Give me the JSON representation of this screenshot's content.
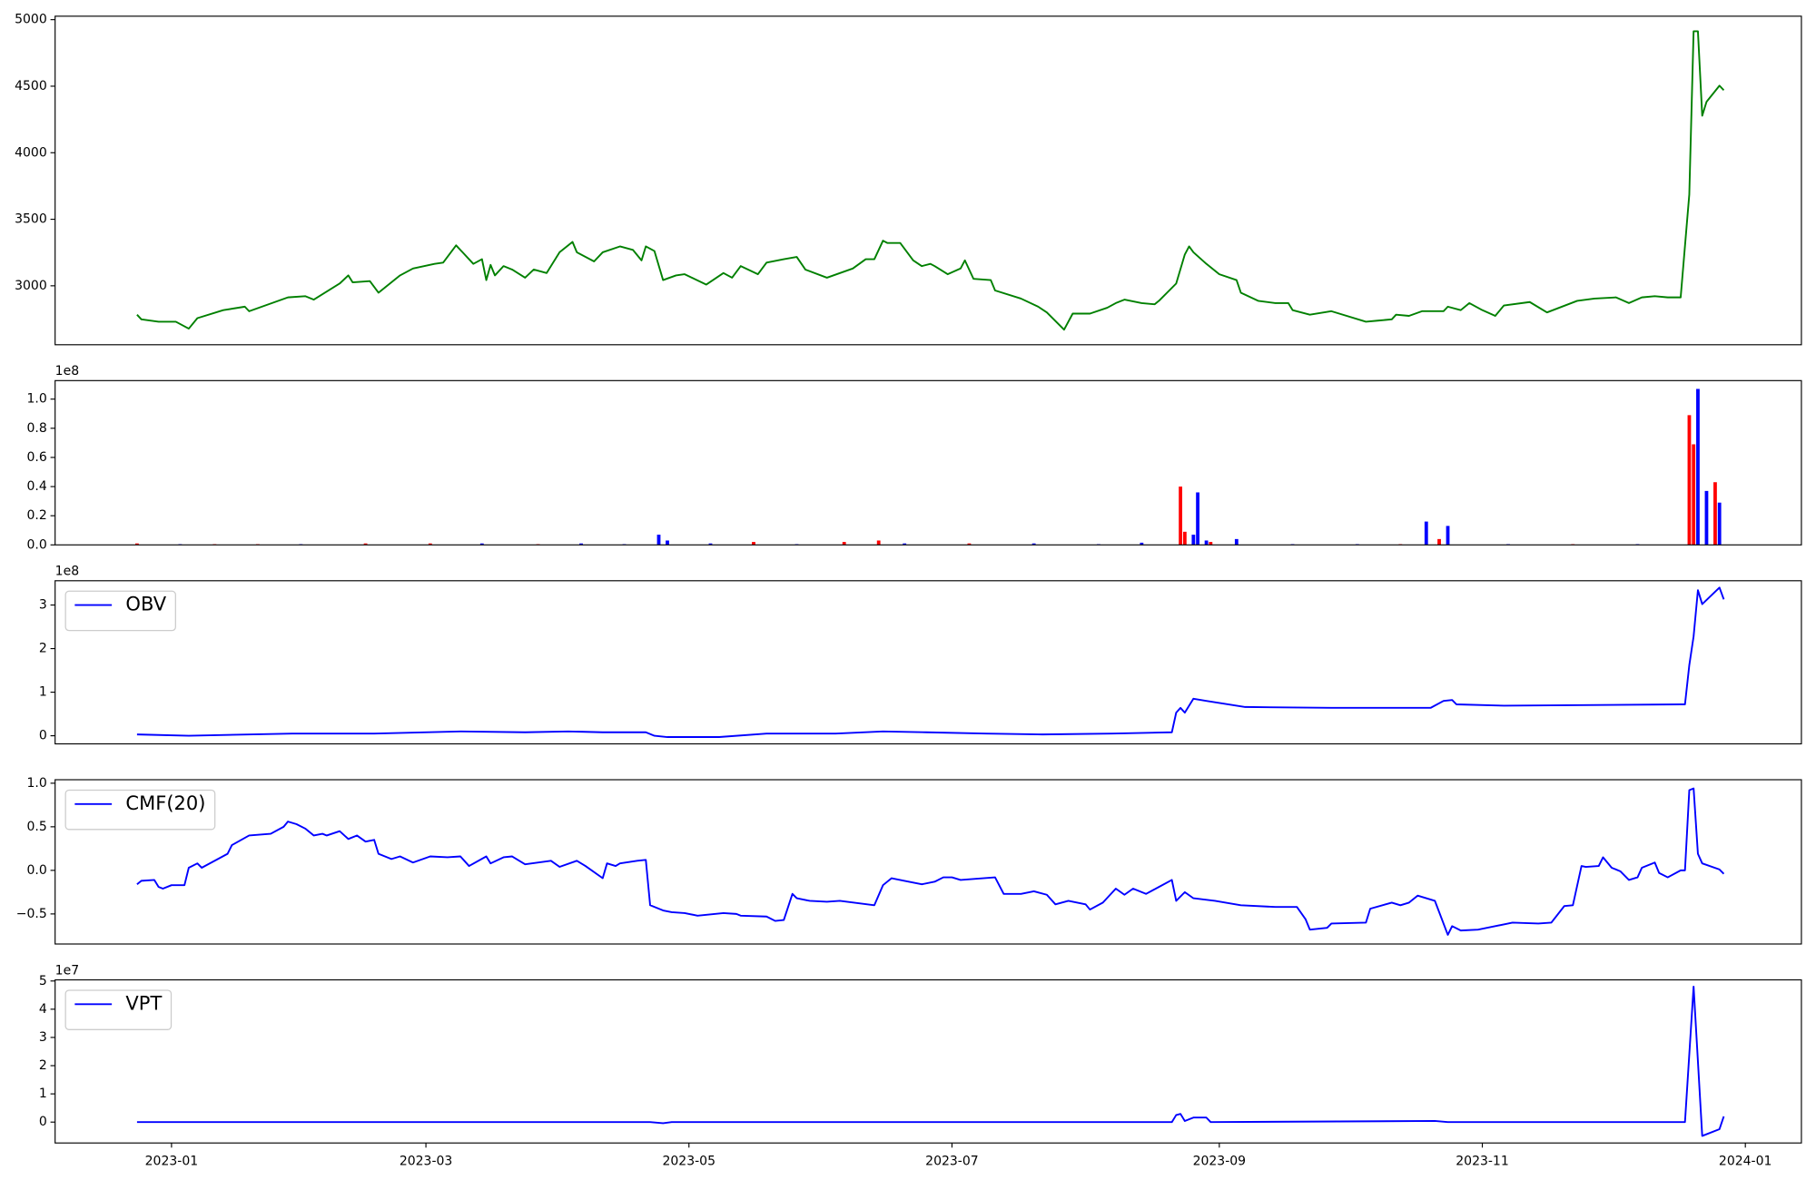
{
  "chart_data": [
    {
      "type": "line",
      "color": "#008000",
      "xlim": [
        -27,
        378
      ],
      "ylim": [
        2557,
        5026
      ],
      "yticks": [
        3000,
        3500,
        4000,
        4500,
        5000
      ],
      "x": [
        -8,
        -7,
        -3,
        1,
        4,
        6,
        12,
        17,
        18,
        27,
        31,
        33,
        39,
        41,
        42,
        46,
        48,
        53,
        56,
        61,
        63,
        66,
        70,
        72,
        73,
        74,
        75,
        77,
        79,
        82,
        84,
        87,
        90,
        93,
        94,
        98,
        100,
        104,
        107,
        109,
        110,
        112,
        114,
        117,
        119,
        124,
        128,
        130,
        132,
        136,
        138,
        142,
        145,
        147,
        152,
        158,
        161,
        163,
        165,
        166,
        169,
        172,
        174,
        176,
        177,
        180,
        183,
        184,
        186,
        190,
        191,
        197,
        201,
        203,
        207,
        209,
        213,
        217,
        219,
        221,
        225,
        228,
        229,
        233,
        235,
        236,
        237,
        240,
        243,
        247,
        248,
        252,
        256,
        259,
        260,
        264,
        269,
        277,
        280,
        283,
        284,
        287,
        290,
        295,
        296,
        299,
        301,
        304,
        307,
        309,
        315,
        319,
        326,
        330,
        335,
        338,
        341,
        344,
        347,
        350,
        352,
        353,
        354,
        355,
        356,
        359,
        360
      ],
      "values": [
        2783,
        2748,
        2730,
        2730,
        2678,
        2757,
        2817,
        2843,
        2809,
        2913,
        2922,
        2896,
        3017,
        3078,
        3026,
        3035,
        2948,
        3078,
        3130,
        3165,
        3174,
        3304,
        3165,
        3200,
        3043,
        3157,
        3078,
        3148,
        3122,
        3061,
        3122,
        3096,
        3252,
        3330,
        3252,
        3183,
        3252,
        3296,
        3270,
        3191,
        3296,
        3261,
        3043,
        3078,
        3087,
        3009,
        3096,
        3061,
        3148,
        3087,
        3174,
        3200,
        3217,
        3122,
        3061,
        3130,
        3200,
        3200,
        3339,
        3322,
        3322,
        3191,
        3148,
        3165,
        3148,
        3087,
        3130,
        3191,
        3052,
        3043,
        2965,
        2904,
        2843,
        2800,
        2670,
        2791,
        2791,
        2835,
        2870,
        2896,
        2870,
        2861,
        2887,
        3017,
        3235,
        3296,
        3252,
        3165,
        3087,
        3043,
        2948,
        2887,
        2870,
        2870,
        2817,
        2783,
        2809,
        2730,
        2739,
        2748,
        2783,
        2774,
        2809,
        2809,
        2843,
        2817,
        2870,
        2817,
        2774,
        2852,
        2878,
        2800,
        2887,
        2904,
        2913,
        2870,
        2913,
        2922,
        2913,
        2913,
        3687,
        4913,
        4913,
        4278,
        4383,
        4504,
        4470
      ]
    },
    {
      "type": "bar",
      "offset_text": "1e8",
      "xlim": [
        -27,
        378
      ],
      "ylim": [
        0,
        1.127
      ],
      "yticks": [
        {
          "value": 0,
          "label": "0.0"
        },
        {
          "value": 0.2,
          "label": "0.2"
        },
        {
          "value": 0.4,
          "label": "0.4"
        },
        {
          "value": 0.6,
          "label": "0.6"
        },
        {
          "value": 0.8,
          "label": "0.8"
        },
        {
          "value": 1.0,
          "label": "1.0"
        }
      ],
      "x": [
        -8,
        2,
        10,
        20,
        30,
        45,
        60,
        72,
        85,
        95,
        105,
        113,
        115,
        125,
        135,
        145,
        156,
        164,
        170,
        185,
        200,
        215,
        225,
        234,
        235,
        237,
        238,
        240,
        241,
        247,
        260,
        275,
        285,
        291,
        294,
        296,
        310,
        325,
        340,
        352,
        353,
        354,
        356,
        358,
        359
      ],
      "values": [
        0.01,
        0.005,
        0.005,
        0.005,
        0.005,
        0.01,
        0.01,
        0.01,
        0.005,
        0.01,
        0.005,
        0.07,
        0.03,
        0.01,
        0.02,
        0.005,
        0.02,
        0.03,
        0.01,
        0.01,
        0.01,
        0.005,
        0.015,
        0.4,
        0.09,
        0.07,
        0.36,
        0.03,
        0.02,
        0.04,
        0.005,
        0.005,
        0.005,
        0.16,
        0.04,
        0.13,
        0.005,
        0.005,
        0.005,
        0.89,
        0.69,
        1.07,
        0.37,
        0.43,
        0.29
      ],
      "colors": [
        "#ff0000",
        "#0000ff",
        "#ff0000",
        "#ff0000",
        "#0000ff",
        "#ff0000",
        "#ff0000",
        "#0000ff",
        "#ff0000",
        "#0000ff",
        "#0000ff",
        "#0000ff",
        "#0000ff",
        "#0000ff",
        "#ff0000",
        "#0000ff",
        "#ff0000",
        "#ff0000",
        "#0000ff",
        "#ff0000",
        "#0000ff",
        "#0000ff",
        "#0000ff",
        "#ff0000",
        "#ff0000",
        "#0000ff",
        "#0000ff",
        "#0000ff",
        "#ff0000",
        "#0000ff",
        "#0000ff",
        "#0000ff",
        "#ff0000",
        "#0000ff",
        "#ff0000",
        "#0000ff",
        "#0000ff",
        "#ff0000",
        "#0000ff",
        "#ff0000",
        "#ff0000",
        "#0000ff",
        "#0000ff",
        "#ff0000",
        "#0000ff"
      ]
    },
    {
      "type": "line",
      "offset_text": "1e8",
      "legend": "upper left",
      "xlim": [
        -27,
        378
      ],
      "ylim": [
        -0.186,
        3.557
      ],
      "yticks": [
        0,
        1,
        2,
        3
      ],
      "x": [
        -8,
        4,
        28,
        47,
        67,
        82,
        92,
        100,
        110,
        112,
        115,
        127,
        138,
        154,
        165,
        175,
        189,
        202,
        218,
        232,
        233,
        234,
        235,
        237,
        240,
        249,
        269,
        292,
        295,
        297,
        298,
        309,
        350,
        351,
        352,
        353,
        354,
        355,
        359,
        360
      ],
      "series": [
        {
          "name": "OBV",
          "color": "#0000ff",
          "values": [
            0.03,
            0,
            0.05,
            0.05,
            0.1,
            0.08,
            0.1,
            0.08,
            0.08,
            0,
            -0.03,
            -0.03,
            0.05,
            0.05,
            0.1,
            0.08,
            0.05,
            0.03,
            0.05,
            0.08,
            0.53,
            0.64,
            0.53,
            0.85,
            0.8,
            0.66,
            0.64,
            0.64,
            0.8,
            0.82,
            0.72,
            0.69,
            0.72,
            0.72,
            1.62,
            2.28,
            3.34,
            3.02,
            3.4,
            3.13
          ]
        }
      ]
    },
    {
      "type": "line",
      "legend": "upper left",
      "xlim": [
        -27,
        378
      ],
      "ylim": [
        -0.845,
        1.04
      ],
      "yticks": [
        {
          "value": -0.5,
          "label": "−0.5"
        },
        {
          "value": 0,
          "label": "0.0"
        },
        {
          "value": 0.5,
          "label": "0.5"
        },
        {
          "value": 1.0,
          "label": "1.0"
        }
      ],
      "x": [
        -8,
        -7,
        -4,
        -3,
        -2,
        0,
        3,
        4,
        6,
        7,
        13,
        14,
        18,
        23,
        26,
        27,
        29,
        31,
        33,
        35,
        36,
        39,
        41,
        43,
        45,
        47,
        48,
        51,
        53,
        56,
        60,
        64,
        67,
        69,
        73,
        74,
        77,
        79,
        82,
        88,
        90,
        94,
        96,
        100,
        101,
        103,
        104,
        108,
        110,
        111,
        114,
        116,
        119,
        122,
        128,
        131,
        132,
        138,
        140,
        142,
        144,
        145,
        148,
        152,
        155,
        163,
        165,
        167,
        170,
        174,
        177,
        179,
        181,
        183,
        191,
        193,
        197,
        200,
        203,
        205,
        208,
        212,
        213,
        216,
        219,
        221,
        223,
        226,
        229,
        232,
        233,
        235,
        237,
        242,
        248,
        256,
        261,
        263,
        264,
        268,
        269,
        277,
        278,
        283,
        285,
        287,
        289,
        291,
        293,
        296,
        297,
        299,
        303,
        307,
        311,
        317,
        320,
        323,
        325,
        327,
        328,
        331,
        332,
        334,
        336,
        338,
        340,
        341,
        344,
        345,
        347,
        350,
        351,
        352,
        353,
        354,
        355,
        359,
        360
      ],
      "series": [
        {
          "name": "CMF(20)",
          "color": "#0000ff",
          "values": [
            -0.16,
            -0.12,
            -0.11,
            -0.19,
            -0.21,
            -0.17,
            -0.17,
            0.03,
            0.08,
            0.03,
            0.19,
            0.29,
            0.4,
            0.42,
            0.5,
            0.56,
            0.53,
            0.48,
            0.4,
            0.42,
            0.4,
            0.45,
            0.36,
            0.4,
            0.33,
            0.35,
            0.19,
            0.13,
            0.16,
            0.09,
            0.16,
            0.15,
            0.16,
            0.05,
            0.16,
            0.08,
            0.15,
            0.16,
            0.07,
            0.11,
            0.04,
            0.11,
            0.05,
            -0.09,
            0.08,
            0.05,
            0.08,
            0.11,
            0.12,
            -0.4,
            -0.46,
            -0.48,
            -0.49,
            -0.52,
            -0.49,
            -0.5,
            -0.52,
            -0.53,
            -0.58,
            -0.57,
            -0.27,
            -0.32,
            -0.35,
            -0.36,
            -0.35,
            -0.4,
            -0.17,
            -0.09,
            -0.12,
            -0.16,
            -0.13,
            -0.08,
            -0.08,
            -0.11,
            -0.08,
            -0.27,
            -0.27,
            -0.24,
            -0.28,
            -0.39,
            -0.35,
            -0.39,
            -0.45,
            -0.37,
            -0.21,
            -0.28,
            -0.21,
            -0.27,
            -0.19,
            -0.11,
            -0.35,
            -0.25,
            -0.32,
            -0.35,
            -0.4,
            -0.42,
            -0.42,
            -0.56,
            -0.68,
            -0.66,
            -0.61,
            -0.6,
            -0.44,
            -0.37,
            -0.4,
            -0.37,
            -0.29,
            -0.32,
            -0.35,
            -0.74,
            -0.64,
            -0.69,
            -0.68,
            -0.64,
            -0.6,
            -0.61,
            -0.6,
            -0.41,
            -0.4,
            0.05,
            0.04,
            0.05,
            0.15,
            0.03,
            -0.01,
            -0.11,
            -0.08,
            0.03,
            0.09,
            -0.03,
            -0.08,
            0,
            0,
            0.92,
            0.94,
            0.19,
            0.08,
            0.01,
            -0.04
          ]
        }
      ]
    },
    {
      "type": "line",
      "offset_text": "1e7",
      "legend": "upper left",
      "xlim": [
        -27,
        378
      ],
      "ylim": [
        -0.74,
        5.04
      ],
      "yticks": [
        0,
        1,
        2,
        3,
        4,
        5
      ],
      "xticks": [
        {
          "value": 0,
          "label": "2023-01"
        },
        {
          "value": 59,
          "label": "2023-03"
        },
        {
          "value": 120,
          "label": "2023-05"
        },
        {
          "value": 181,
          "label": "2023-07"
        },
        {
          "value": 243,
          "label": "2023-09"
        },
        {
          "value": 304,
          "label": "2023-11"
        },
        {
          "value": 365,
          "label": "2024-01"
        }
      ],
      "x": [
        -8,
        111,
        114,
        116,
        165,
        232,
        233,
        234,
        235,
        237,
        240,
        241,
        293,
        296,
        351,
        353,
        355,
        359,
        360
      ],
      "series": [
        {
          "name": "VPT",
          "color": "#0000ff",
          "values": [
            0,
            0,
            -0.04,
            0,
            0,
            0,
            0.25,
            0.29,
            0.04,
            0.16,
            0.16,
            0,
            0.04,
            0,
            0,
            4.8,
            -0.49,
            -0.25,
            0.2
          ]
        }
      ]
    }
  ]
}
